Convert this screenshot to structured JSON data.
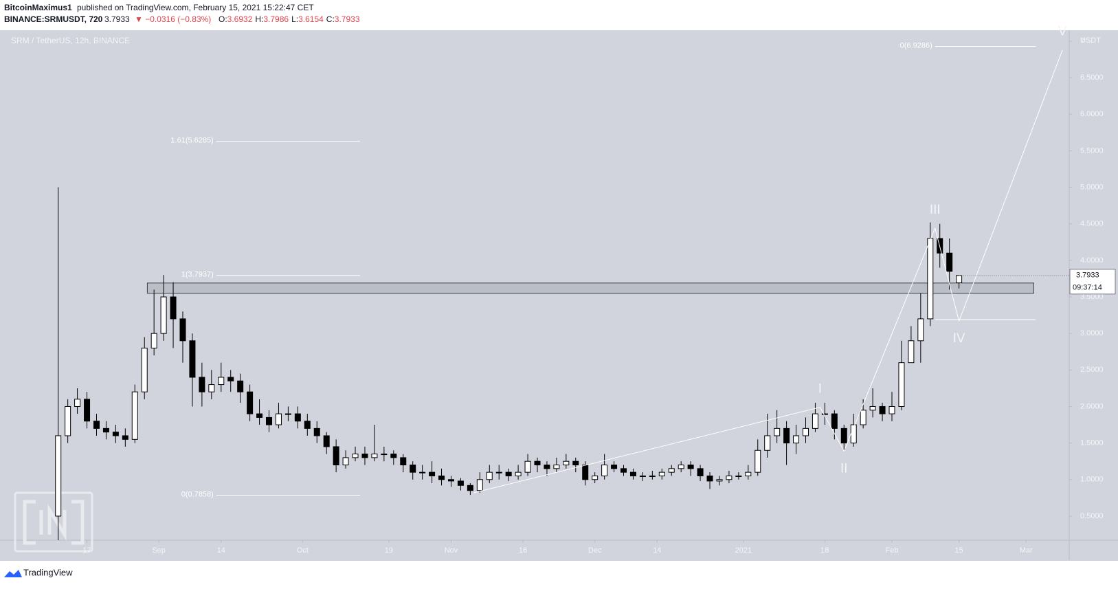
{
  "header": {
    "author": "BitcoinMaximus1",
    "published": "published on TradingView.com, February 15, 2021 15:22:47 CET",
    "symbol": "BINANCE:SRMUSDT, 720",
    "change": "▼ −0.0316 (−0.83%)",
    "ohlc_labels": [
      "O:",
      "H:",
      "L:",
      "C:"
    ]
  },
  "chart_data": {
    "type": "candlestick",
    "title": "SRM / TetherUS, 12h, BINANCE",
    "y_unit": "USDT",
    "xlim": [
      -17,
      205
    ],
    "xticks": [
      {
        "value": 0,
        "label": "17"
      },
      {
        "value": 15,
        "label": "Sep"
      },
      {
        "value": 28,
        "label": "14"
      },
      {
        "value": 45,
        "label": "Oct"
      },
      {
        "value": 63,
        "label": "19"
      },
      {
        "value": 76,
        "label": "Nov"
      },
      {
        "value": 91,
        "label": "16"
      },
      {
        "value": 106,
        "label": "Dec"
      },
      {
        "value": 119,
        "label": "14"
      },
      {
        "value": 137,
        "label": "2021"
      },
      {
        "value": 154,
        "label": "18"
      },
      {
        "value": 168,
        "label": "Feb"
      },
      {
        "value": 182,
        "label": "15"
      },
      {
        "value": 196,
        "label": "Mar"
      }
    ],
    "ylim": [
      0.17,
      7.15
    ],
    "yticks": [
      {
        "value": 0.5,
        "label": "0.5000"
      },
      {
        "value": 1,
        "label": "1.0000"
      },
      {
        "value": 1.5,
        "label": "1.5000"
      },
      {
        "value": 2,
        "label": "2.0000"
      },
      {
        "value": 2.5,
        "label": "2.5000"
      },
      {
        "value": 3,
        "label": "3.0000"
      },
      {
        "value": 3.5,
        "label": "3.5000"
      },
      {
        "value": 4,
        "label": "4.0000"
      },
      {
        "value": 4.5,
        "label": "4.5000"
      },
      {
        "value": 5,
        "label": "5.0000"
      },
      {
        "value": 5.5,
        "label": "5.5000"
      },
      {
        "value": 6,
        "label": "6.0000"
      },
      {
        "value": 6.5,
        "label": "6.5000"
      },
      7
    ],
    "x": [
      -6,
      -4,
      -2,
      0,
      2,
      4,
      6,
      8,
      10,
      12,
      14,
      16,
      18,
      20,
      22,
      24,
      26,
      28,
      30,
      32,
      34,
      36,
      38,
      40,
      42,
      44,
      46,
      48,
      50,
      52,
      54,
      56,
      58,
      60,
      62,
      64,
      66,
      68,
      70,
      72,
      74,
      76,
      78,
      80,
      82,
      84,
      86,
      88,
      90,
      92,
      94,
      96,
      98,
      100,
      102,
      104,
      106,
      108,
      110,
      112,
      114,
      116,
      118,
      120,
      122,
      124,
      126,
      128,
      130,
      132,
      134,
      136,
      138,
      140,
      142,
      144,
      146,
      148,
      150,
      152,
      154,
      156,
      158,
      160,
      162,
      164,
      166,
      168,
      170,
      172,
      174,
      176,
      178,
      180,
      182
    ],
    "open": [
      0.5,
      1.6,
      2.0,
      2.1,
      1.8,
      1.7,
      1.65,
      1.6,
      1.55,
      2.2,
      2.8,
      3.0,
      3.5,
      3.2,
      2.9,
      2.4,
      2.2,
      2.3,
      2.4,
      2.35,
      2.2,
      1.9,
      1.85,
      1.75,
      1.9,
      1.9,
      1.8,
      1.7,
      1.6,
      1.45,
      1.2,
      1.3,
      1.35,
      1.3,
      1.35,
      1.35,
      1.3,
      1.2,
      1.1,
      1.1,
      1.05,
      1.0,
      0.98,
      0.92,
      0.85,
      1.0,
      1.1,
      1.1,
      1.05,
      1.1,
      1.25,
      1.2,
      1.15,
      1.2,
      1.25,
      1.2,
      1.0,
      1.05,
      1.2,
      1.15,
      1.1,
      1.05,
      1.05,
      1.05,
      1.1,
      1.15,
      1.2,
      1.15,
      1.05,
      0.98,
      1.0,
      1.05,
      1.05,
      1.1,
      1.4,
      1.6,
      1.7,
      1.5,
      1.6,
      1.7,
      1.9,
      1.9,
      1.7,
      1.5,
      1.75,
      1.95,
      2.0,
      1.9,
      2.0,
      2.6,
      2.9,
      3.2,
      4.3,
      4.1,
      3.6932
    ],
    "high": [
      5.0,
      2.1,
      2.25,
      2.2,
      1.9,
      1.8,
      1.75,
      1.7,
      2.3,
      2.95,
      3.6,
      3.8,
      3.7,
      3.3,
      3.0,
      2.6,
      2.5,
      2.6,
      2.5,
      2.45,
      2.3,
      2.1,
      1.95,
      2.05,
      2.0,
      2.0,
      1.9,
      1.8,
      1.65,
      1.55,
      1.4,
      1.45,
      1.45,
      1.75,
      1.45,
      1.4,
      1.35,
      1.25,
      1.2,
      1.25,
      1.15,
      1.05,
      1.02,
      0.95,
      1.1,
      1.2,
      1.2,
      1.15,
      1.2,
      1.35,
      1.3,
      1.25,
      1.3,
      1.35,
      1.3,
      1.25,
      1.1,
      1.35,
      1.25,
      1.2,
      1.15,
      1.1,
      1.12,
      1.15,
      1.2,
      1.25,
      1.25,
      1.2,
      1.1,
      1.05,
      1.12,
      1.1,
      1.2,
      1.55,
      1.9,
      1.95,
      1.8,
      1.75,
      1.85,
      2.05,
      2.05,
      1.95,
      1.75,
      1.9,
      2.1,
      2.25,
      2.05,
      2.2,
      2.9,
      3.1,
      3.55,
      4.52,
      4.5,
      4.3,
      3.7986
    ],
    "low": [
      0.17,
      1.5,
      1.9,
      1.7,
      1.6,
      1.55,
      1.5,
      1.45,
      1.5,
      2.1,
      2.7,
      2.9,
      2.8,
      2.6,
      2.0,
      2.0,
      2.1,
      2.2,
      2.2,
      2.05,
      1.8,
      1.75,
      1.65,
      1.7,
      1.8,
      1.7,
      1.6,
      1.5,
      1.35,
      1.1,
      1.15,
      1.25,
      1.2,
      1.25,
      1.25,
      1.2,
      1.1,
      1.0,
      1.0,
      0.95,
      0.92,
      0.9,
      0.85,
      0.79,
      0.82,
      0.95,
      1.0,
      0.98,
      1.0,
      1.05,
      1.1,
      1.05,
      1.1,
      1.15,
      1.1,
      0.92,
      0.95,
      1.0,
      1.1,
      1.05,
      1.0,
      0.98,
      1.0,
      1.0,
      1.05,
      1.1,
      1.05,
      0.98,
      0.87,
      0.92,
      0.95,
      1.0,
      1.0,
      1.05,
      1.3,
      1.5,
      1.2,
      1.35,
      1.5,
      1.65,
      1.75,
      1.55,
      1.4,
      1.45,
      1.7,
      1.85,
      1.8,
      1.8,
      1.95,
      2.6,
      2.6,
      3.1,
      3.9,
      3.6,
      3.6154
    ],
    "close": [
      1.6,
      2.0,
      2.1,
      1.8,
      1.7,
      1.65,
      1.6,
      1.55,
      2.2,
      2.8,
      3.0,
      3.5,
      3.2,
      2.9,
      2.4,
      2.2,
      2.3,
      2.4,
      2.35,
      2.2,
      1.9,
      1.85,
      1.75,
      1.9,
      1.9,
      1.8,
      1.7,
      1.6,
      1.45,
      1.2,
      1.3,
      1.35,
      1.3,
      1.35,
      1.35,
      1.3,
      1.2,
      1.1,
      1.1,
      1.05,
      1.0,
      0.98,
      0.92,
      0.85,
      1.0,
      1.1,
      1.1,
      1.05,
      1.1,
      1.25,
      1.2,
      1.15,
      1.2,
      1.25,
      1.2,
      1.0,
      1.05,
      1.2,
      1.15,
      1.1,
      1.05,
      1.05,
      1.05,
      1.1,
      1.15,
      1.2,
      1.15,
      1.05,
      0.98,
      1.0,
      1.05,
      1.05,
      1.1,
      1.4,
      1.6,
      1.7,
      1.5,
      1.6,
      1.7,
      1.9,
      1.9,
      1.7,
      1.5,
      1.75,
      1.95,
      2.0,
      1.9,
      2.0,
      2.6,
      2.9,
      3.2,
      4.3,
      4.1,
      3.85,
      3.7933
    ],
    "countdown": "09:37:14",
    "zone": {
      "x": [
        12.6,
        197.6
      ],
      "y": [
        3.55,
        3.69
      ]
    },
    "fib_levels": [
      {
        "label": "1.61(5.6285)",
        "value": 5.6285,
        "x": [
          27,
          57
        ]
      },
      {
        "label": "1(3.7937)",
        "value": 3.7937,
        "x": [
          27,
          57
        ]
      },
      {
        "label": "0(0.7858)",
        "value": 0.7858,
        "x": [
          27,
          57
        ]
      },
      {
        "label": "0(6.9286)",
        "value": 6.9286,
        "x": [
          177,
          198
        ]
      },
      {
        "value": 3.19,
        "x": [
          177,
          198
        ]
      }
    ],
    "waves": {
      "x": [
        80.8,
        153,
        158,
        177,
        182,
        203.6
      ],
      "y": [
        0.82,
        1.99,
        1.39,
        4.44,
        3.17,
        6.88
      ],
      "labels": [
        null,
        "I",
        "II",
        "III",
        "IV",
        "V"
      ]
    },
    "footer": "TradingView"
  }
}
